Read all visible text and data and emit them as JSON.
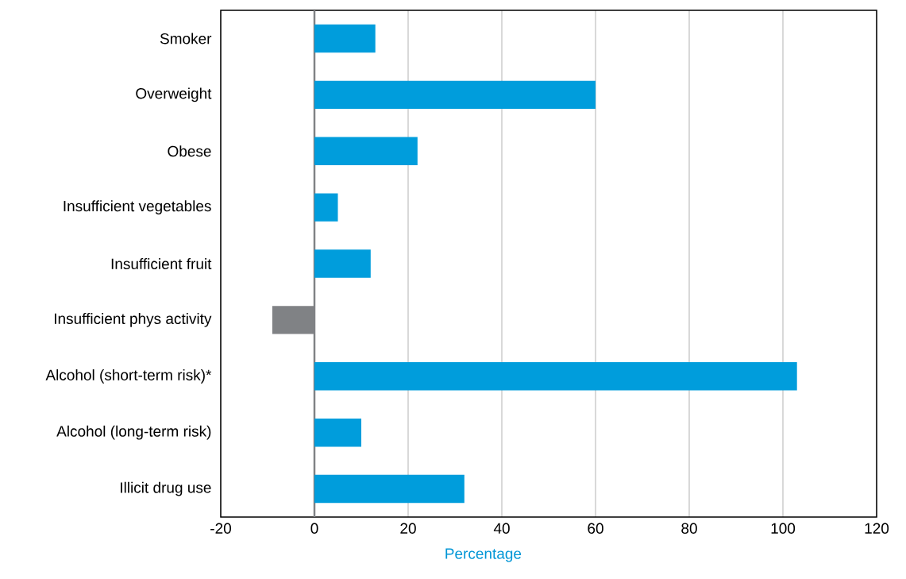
{
  "chart_data": {
    "type": "bar",
    "orientation": "horizontal",
    "xlabel": "Percentage",
    "categories": [
      "Smoker",
      "Overweight",
      "Obese",
      "Insufficient vegetables",
      "Insufficient fruit",
      "Insufficient phys activity",
      "Alcohol (short-term risk)*",
      "Alcohol (long-term risk)",
      "Illicit drug use"
    ],
    "values": [
      13,
      60,
      22,
      5,
      12,
      -9,
      103,
      10,
      32
    ],
    "colors": [
      "#009ddc",
      "#009ddc",
      "#009ddc",
      "#009ddc",
      "#009ddc",
      "#808285",
      "#009ddc",
      "#009ddc",
      "#009ddc"
    ],
    "xlim": [
      -20,
      120
    ],
    "xticks": [
      -20,
      0,
      20,
      40,
      60,
      80,
      100,
      120
    ],
    "grid": "x",
    "ref_lines": [
      {
        "axis": "x",
        "value": 0,
        "color": "#808285"
      }
    ]
  }
}
